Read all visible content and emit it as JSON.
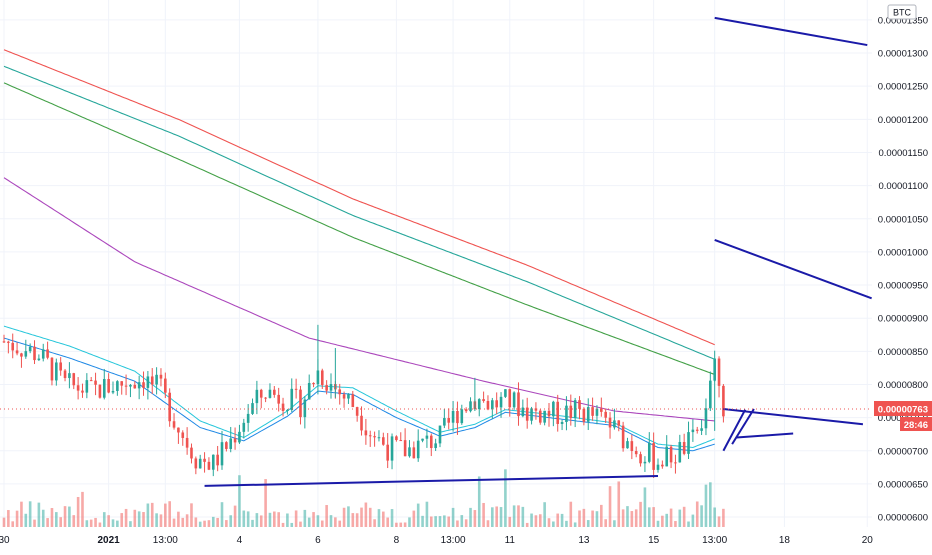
{
  "chart_data": {
    "type": "candlestick",
    "currency": "BTC",
    "current_price_label": "0.00000763",
    "countdown_label": "28:46",
    "ylim": [
      5.85e-06,
      1.38e-05
    ],
    "y_ticks": [
      {
        "value": 6e-06,
        "label": "0.00000600"
      },
      {
        "value": 6.5e-06,
        "label": "0.00000650"
      },
      {
        "value": 7e-06,
        "label": "0.00000700"
      },
      {
        "value": 7.5e-06,
        "label": "0.00000750"
      },
      {
        "value": 8e-06,
        "label": "0.00000800"
      },
      {
        "value": 8.5e-06,
        "label": "0.00000850"
      },
      {
        "value": 9e-06,
        "label": "0.00000900"
      },
      {
        "value": 9.5e-06,
        "label": "0.00000950"
      },
      {
        "value": 1e-05,
        "label": "0.00001000"
      },
      {
        "value": 1.05e-05,
        "label": "0.00001050"
      },
      {
        "value": 1.1e-05,
        "label": "0.00001100"
      },
      {
        "value": 1.15e-05,
        "label": "0.00001150"
      },
      {
        "value": 1.2e-05,
        "label": "0.00001200"
      },
      {
        "value": 1.25e-05,
        "label": "0.00001250"
      },
      {
        "value": 1.3e-05,
        "label": "0.00001300"
      },
      {
        "value": 1.35e-05,
        "label": "0.00001350"
      }
    ],
    "x_ticks": [
      {
        "t": 0,
        "label": "30",
        "bold": false
      },
      {
        "t": 24,
        "label": "2021",
        "bold": true
      },
      {
        "t": 37,
        "label": "13:00",
        "bold": false
      },
      {
        "t": 54,
        "label": "4",
        "bold": false
      },
      {
        "t": 72,
        "label": "6",
        "bold": false
      },
      {
        "t": 90,
        "label": "8",
        "bold": false
      },
      {
        "t": 103,
        "label": "13:00",
        "bold": false
      },
      {
        "t": 116,
        "label": "11",
        "bold": false
      },
      {
        "t": 133,
        "label": "13",
        "bold": false
      },
      {
        "t": 149,
        "label": "15",
        "bold": false
      },
      {
        "t": 163,
        "label": "13:00",
        "bold": false
      },
      {
        "t": 179,
        "label": "18",
        "bold": false
      },
      {
        "t": 198,
        "label": "20",
        "bold": false
      }
    ],
    "moving_averages": [
      {
        "color": "#ef5350",
        "points": [
          [
            0,
            1.305e-05
          ],
          [
            40,
            1.2e-05
          ],
          [
            80,
            1.08e-05
          ],
          [
            120,
            9.8e-06
          ],
          [
            163,
            8.6e-06
          ]
        ]
      },
      {
        "color": "#26a69a",
        "points": [
          [
            0,
            1.28e-05
          ],
          [
            40,
            1.175e-05
          ],
          [
            80,
            1.055e-05
          ],
          [
            120,
            9.55e-06
          ],
          [
            163,
            8.38e-06
          ]
        ]
      },
      {
        "color": "#43a047",
        "points": [
          [
            0,
            1.255e-05
          ],
          [
            40,
            1.14e-05
          ],
          [
            80,
            1.022e-05
          ],
          [
            120,
            9.2e-06
          ],
          [
            163,
            8.15e-06
          ]
        ]
      },
      {
        "color": "#ab47bc",
        "points": [
          [
            0,
            1.112e-05
          ],
          [
            30,
            9.85e-06
          ],
          [
            70,
            8.7e-06
          ],
          [
            110,
            8.05e-06
          ],
          [
            140,
            7.6e-06
          ],
          [
            163,
            7.45e-06
          ]
        ]
      }
    ],
    "fast_averages": [
      {
        "color": "#26c6da",
        "points": [
          [
            0,
            8.88e-06
          ],
          [
            15,
            8.58e-06
          ],
          [
            30,
            8.2e-06
          ],
          [
            45,
            7.45e-06
          ],
          [
            55,
            7.2e-06
          ],
          [
            65,
            7.6e-06
          ],
          [
            72,
            7.98e-06
          ],
          [
            80,
            7.95e-06
          ],
          [
            90,
            7.6e-06
          ],
          [
            100,
            7.28e-06
          ],
          [
            108,
            7.4e-06
          ],
          [
            115,
            7.62e-06
          ],
          [
            125,
            7.55e-06
          ],
          [
            140,
            7.42e-06
          ],
          [
            150,
            7.1e-06
          ],
          [
            158,
            7.05e-06
          ],
          [
            163,
            7.18e-06
          ]
        ]
      },
      {
        "color": "#1e88e5",
        "points": [
          [
            0,
            8.7e-06
          ],
          [
            15,
            8.4e-06
          ],
          [
            30,
            8.05e-06
          ],
          [
            45,
            7.35e-06
          ],
          [
            55,
            7.15e-06
          ],
          [
            65,
            7.52e-06
          ],
          [
            72,
            7.9e-06
          ],
          [
            80,
            7.85e-06
          ],
          [
            90,
            7.5e-06
          ],
          [
            100,
            7.22e-06
          ],
          [
            108,
            7.35e-06
          ],
          [
            115,
            7.58e-06
          ],
          [
            125,
            7.5e-06
          ],
          [
            140,
            7.38e-06
          ],
          [
            150,
            7.05e-06
          ],
          [
            158,
            7e-06
          ],
          [
            163,
            7.1e-06
          ]
        ]
      }
    ],
    "price_path": [
      [
        0,
        8.65e-06
      ],
      [
        8,
        8.45e-06
      ],
      [
        14,
        8e-06
      ],
      [
        20,
        7.9e-06
      ],
      [
        26,
        8e-06
      ],
      [
        32,
        8.1e-06
      ],
      [
        36,
        7.9e-06
      ],
      [
        40,
        7.35e-06
      ],
      [
        44,
        6.9e-06
      ],
      [
        48,
        6.8e-06
      ],
      [
        52,
        7.15e-06
      ],
      [
        56,
        7.6e-06
      ],
      [
        60,
        7.9e-06
      ],
      [
        64,
        7.8e-06
      ],
      [
        68,
        7.7e-06
      ],
      [
        72,
        8.2e-06
      ],
      [
        75,
        8e-06
      ],
      [
        80,
        7.7e-06
      ],
      [
        84,
        7.3e-06
      ],
      [
        88,
        7.05e-06
      ],
      [
        92,
        7e-06
      ],
      [
        96,
        7.1e-06
      ],
      [
        100,
        7.2e-06
      ],
      [
        104,
        7.6e-06
      ],
      [
        108,
        7.8e-06
      ],
      [
        112,
        7.7e-06
      ],
      [
        116,
        7.75e-06
      ],
      [
        120,
        7.6e-06
      ],
      [
        126,
        7.55e-06
      ],
      [
        132,
        7.6e-06
      ],
      [
        138,
        7.45e-06
      ],
      [
        142,
        7.2e-06
      ],
      [
        146,
        7e-06
      ],
      [
        150,
        6.85e-06
      ],
      [
        154,
        6.95e-06
      ],
      [
        158,
        7.15e-06
      ],
      [
        161,
        7.65e-06
      ],
      [
        163,
        8.22e-06
      ],
      [
        165,
        7.63e-06
      ]
    ],
    "trend_lines": [
      {
        "points": [
          [
            46,
            6.47e-06
          ],
          [
            150,
            6.62e-06
          ]
        ]
      },
      {
        "points": [
          [
            165,
            7.63e-06
          ],
          [
            197,
            7.4e-06
          ]
        ]
      },
      {
        "points": [
          [
            165,
            7e-06
          ],
          [
            170,
            7.62e-06
          ]
        ]
      },
      {
        "points": [
          [
            167,
            7.1e-06
          ],
          [
            172,
            7.63e-06
          ]
        ]
      },
      {
        "points": [
          [
            168,
            7.2e-06
          ],
          [
            181,
            7.26e-06
          ]
        ]
      },
      {
        "points": [
          [
            163,
            1.353e-05
          ],
          [
            198,
            1.312e-05
          ]
        ]
      },
      {
        "points": [
          [
            163,
            1.018e-05
          ],
          [
            199,
            9.3e-06
          ]
        ]
      }
    ]
  }
}
